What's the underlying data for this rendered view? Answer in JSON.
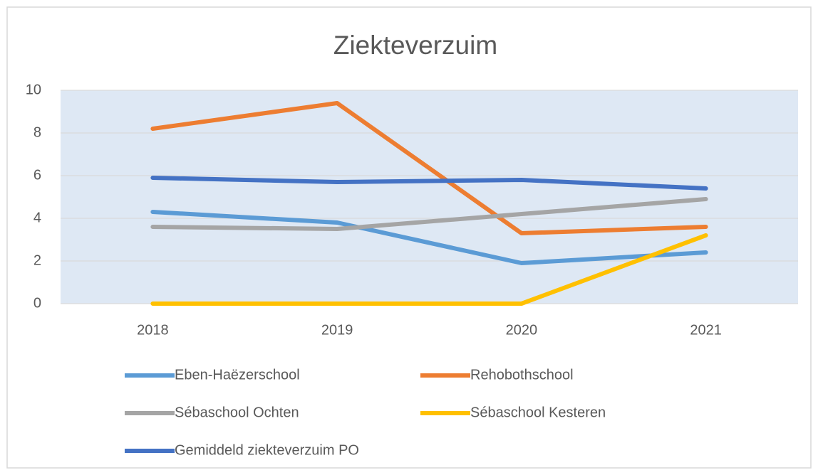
{
  "chart_data": {
    "type": "line",
    "title": "Ziekteverzuim",
    "categories": [
      "2018",
      "2019",
      "2020",
      "2021"
    ],
    "series": [
      {
        "name": "Eben-Haëzerschool",
        "color": "#5b9bd5",
        "values": [
          4.3,
          3.8,
          1.9,
          2.4
        ]
      },
      {
        "name": "Rehobothschool",
        "color": "#ed7d31",
        "values": [
          8.2,
          9.4,
          3.3,
          3.6
        ]
      },
      {
        "name": "Sébaschool Ochten",
        "color": "#a5a5a5",
        "values": [
          3.6,
          3.5,
          4.2,
          4.9
        ]
      },
      {
        "name": "Sébaschool Kesteren",
        "color": "#ffc000",
        "values": [
          0,
          0,
          0,
          3.2
        ]
      },
      {
        "name": "Gemiddeld ziekteverzuim PO",
        "color": "#4472c4",
        "values": [
          5.9,
          5.7,
          5.8,
          5.4
        ]
      }
    ],
    "ylim": [
      0,
      10
    ],
    "yticks": [
      0,
      2,
      4,
      6,
      8,
      10
    ],
    "grid": true,
    "legend": "bottom"
  }
}
